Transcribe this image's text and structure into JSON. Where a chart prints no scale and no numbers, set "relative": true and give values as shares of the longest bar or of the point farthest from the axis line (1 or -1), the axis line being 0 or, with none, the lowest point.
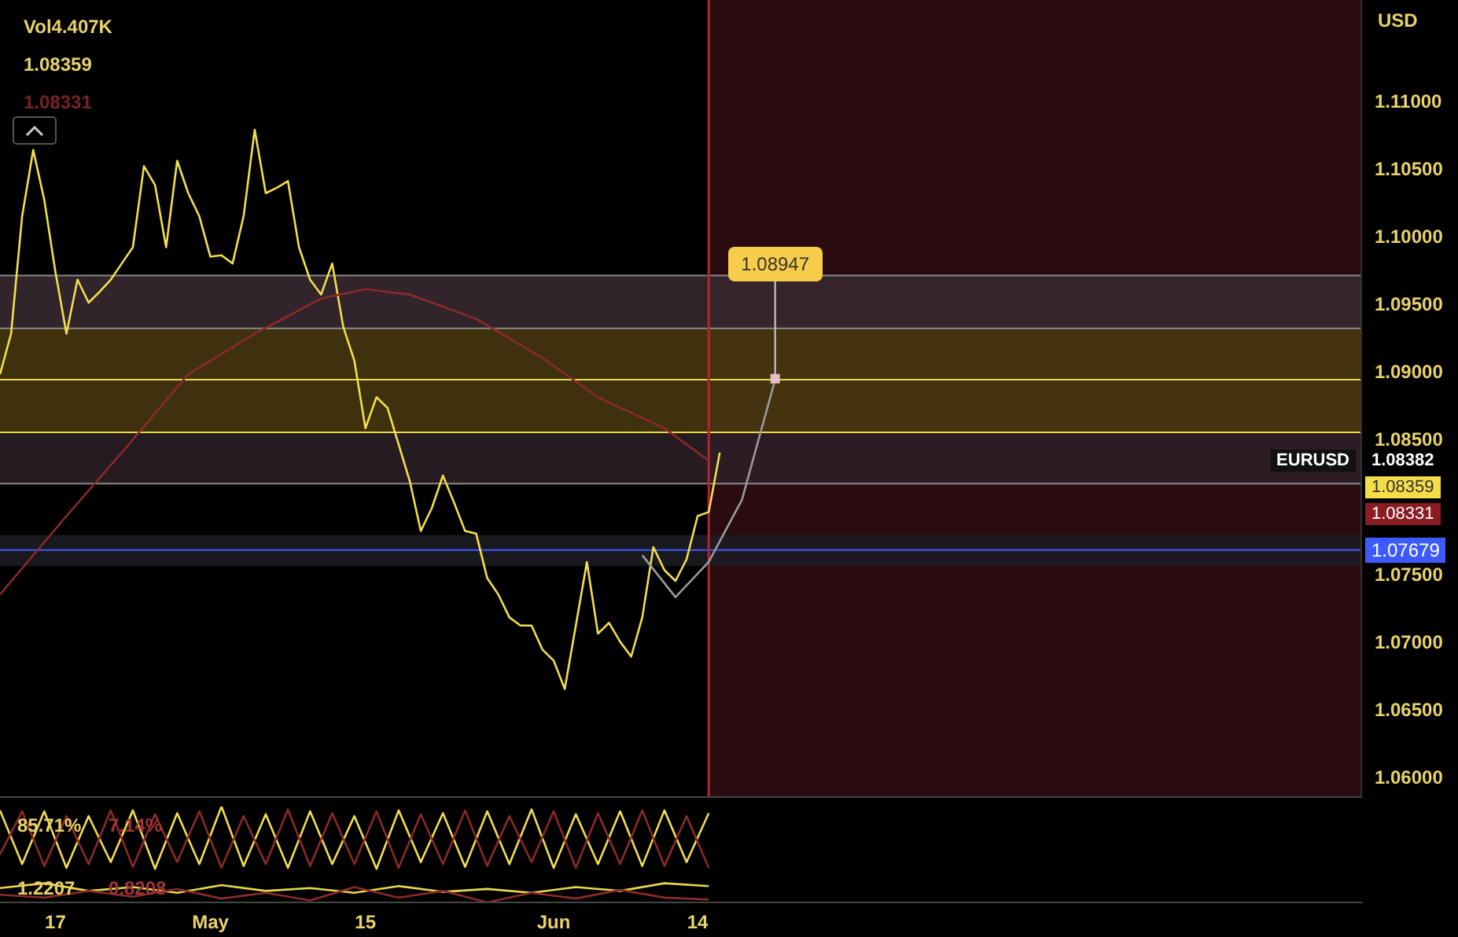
{
  "chart_data": [
    {
      "type": "line",
      "ylabel": "USD",
      "xlim": [
        "--04-12",
        "--08-13"
      ],
      "ylim": [
        1.0585,
        1.1175
      ],
      "yticks": [
        {
          "value": 1.06,
          "label": "1.06000"
        },
        {
          "value": 1.065,
          "label": "1.06500"
        },
        {
          "value": 1.07,
          "label": "1.07000"
        },
        {
          "value": 1.075,
          "label": "1.07500"
        },
        {
          "value": 1.085,
          "label": "1.08500"
        },
        {
          "value": 1.09,
          "label": "1.09000"
        },
        {
          "value": 1.095,
          "label": "1.09500"
        },
        {
          "value": 1.1,
          "label": "1.10000"
        },
        {
          "value": 1.105,
          "label": "1.10500"
        },
        {
          "value": 1.11,
          "label": "1.11000"
        }
      ],
      "tick_labels": "y",
      "marker": "none",
      "series": [
        {
          "color": "#f3df4c",
          "x": [
            "--04-12",
            "--04-13",
            "--04-14",
            "--04-15",
            "--04-16",
            "--04-17",
            "--04-18",
            "--04-19",
            "--04-20",
            "--04-21",
            "--04-22",
            "--04-23",
            "--04-24",
            "--04-25",
            "--04-26",
            "--04-27",
            "--04-28",
            "--04-29",
            "--04-30",
            "--05-01",
            "--05-02",
            "--05-03",
            "--05-04",
            "--05-05",
            "--05-06",
            "--05-07",
            "--05-08",
            "--05-09",
            "--05-10",
            "--05-11",
            "--05-12",
            "--05-13",
            "--05-14",
            "--05-15",
            "--05-16",
            "--05-17",
            "--05-18",
            "--05-19",
            "--05-20",
            "--05-21",
            "--05-22",
            "--05-23",
            "--05-24",
            "--05-25",
            "--05-26",
            "--05-27",
            "--05-28",
            "--05-29",
            "--05-30",
            "--05-31",
            "--06-01",
            "--06-02",
            "--06-03",
            "--06-04",
            "--06-05",
            "--06-06",
            "--06-07",
            "--06-08",
            "--06-09",
            "--06-10",
            "--06-11",
            "--06-12",
            "--06-13",
            "--06-14",
            "--06-15",
            "--06-16"
          ],
          "values": [
            1.0898,
            1.0928,
            1.1015,
            1.1064,
            1.1027,
            1.0974,
            1.0928,
            1.0968,
            1.0951,
            1.0959,
            1.0968,
            1.098,
            1.0992,
            1.1052,
            1.1038,
            1.0992,
            1.1056,
            1.1032,
            1.1015,
            1.0985,
            1.0986,
            1.098,
            1.1015,
            1.1079,
            1.1032,
            1.1036,
            1.1041,
            1.0992,
            1.0968,
            1.0957,
            1.098,
            1.0933,
            1.0908,
            1.0858,
            1.0881,
            1.0873,
            1.0846,
            1.0819,
            1.0782,
            1.0799,
            1.0823,
            1.0803,
            1.0782,
            1.078,
            1.0747,
            1.0735,
            1.0718,
            1.0712,
            1.0712,
            1.0694,
            1.0686,
            1.0665,
            1.0712,
            1.0759,
            1.0706,
            1.0714,
            1.07,
            1.0689,
            1.0718,
            1.077,
            1.0753,
            1.0745,
            1.0761,
            1.0793,
            1.0796,
            1.084
          ]
        },
        {
          "color": "#8b2a2a",
          "x": [
            "--04-12",
            "--04-18",
            "--04-23",
            "--04-29",
            "--05-05",
            "--05-11",
            "--05-15",
            "--05-19",
            "--05-25",
            "--05-31",
            "--06-05",
            "--06-11",
            "--06-15"
          ],
          "values": [
            1.0735,
            1.0793,
            1.084,
            1.0898,
            1.0928,
            1.0954,
            1.0961,
            1.0957,
            1.0939,
            1.091,
            1.0881,
            1.0858,
            1.0834
          ]
        },
        {
          "color": "#9a9a9a",
          "x": [
            "--06-09",
            "--06-12",
            "--06-15",
            "--06-18",
            "--06-21"
          ],
          "values": [
            1.0764,
            1.0733,
            1.0759,
            1.0805,
            1.0894
          ]
        }
      ],
      "ref_lines": [
        {
          "axis": "y",
          "value": 1.0971,
          "color": "#8a8a8a"
        },
        {
          "axis": "y",
          "value": 1.0932,
          "color": "#8a8a8a"
        },
        {
          "axis": "y",
          "value": 1.0894,
          "color": "#e8d84a"
        },
        {
          "axis": "y",
          "value": 1.0855,
          "color": "#e8d84a"
        },
        {
          "axis": "y",
          "value": 1.0817,
          "color": "#8a8a8a"
        },
        {
          "axis": "y",
          "value": 1.07679,
          "color": "#3d5afe",
          "label": "1.07679"
        },
        {
          "axis": "x",
          "value": "--06-15",
          "color": "#b3262e"
        }
      ],
      "bands": [
        {
          "axis": "x",
          "from": "--06-15",
          "to": "--08-13",
          "color": "#2a0c10"
        },
        {
          "axis": "y",
          "from": 1.0932,
          "to": 1.0971,
          "color": "#3a2a32"
        },
        {
          "axis": "y",
          "from": 1.0855,
          "to": 1.0932,
          "color": "#4a3a10"
        },
        {
          "axis": "y",
          "from": 1.0817,
          "to": 1.0855,
          "color": "#2e2028"
        },
        {
          "axis": "y",
          "from": 1.0756,
          "to": 1.0779,
          "color": "#1c1c24"
        }
      ],
      "annotations": [
        "Vol4.407K",
        "1.08359",
        "1.08331",
        {
          "text": "1.08947",
          "x": "--06-21",
          "y": 1.08947
        },
        "EURUSD",
        "1.08382",
        "1.08359",
        "1.08331"
      ]
    },
    {
      "type": "line",
      "relative": true,
      "xlim": [
        "--04-12",
        "--08-13"
      ],
      "xticks": [
        {
          "value": "--04-17",
          "label": "17"
        },
        {
          "value": "--05-01",
          "label": "May"
        },
        {
          "value": "--05-15",
          "label": "15"
        },
        {
          "value": "--06-01",
          "label": "Jun"
        },
        {
          "value": "--06-14",
          "label": "14"
        }
      ],
      "tick_labels": "x",
      "marker": "none",
      "series": [
        {
          "color": "#f3df4c",
          "x": [
            "--04-12",
            "--04-14",
            "--04-16",
            "--04-18",
            "--04-20",
            "--04-22",
            "--04-24",
            "--04-26",
            "--04-28",
            "--04-30",
            "--05-02",
            "--05-04",
            "--05-06",
            "--05-08",
            "--05-10",
            "--05-12",
            "--05-14",
            "--05-16",
            "--05-18",
            "--05-20",
            "--05-22",
            "--05-24",
            "--05-26",
            "--05-28",
            "--05-30",
            "--06-01",
            "--06-03",
            "--06-05",
            "--06-07",
            "--06-09",
            "--06-11",
            "--06-13",
            "--06-15"
          ],
          "values": [
            0.96,
            0.4,
            0.95,
            0.36,
            0.9,
            0.42,
            0.96,
            0.35,
            0.93,
            0.4,
            1,
            0.38,
            0.92,
            0.36,
            0.95,
            0.4,
            0.9,
            0.35,
            0.96,
            0.42,
            0.93,
            0.37,
            0.95,
            0.4,
            0.97,
            0.36,
            0.92,
            0.4,
            0.95,
            0.38,
            0.96,
            0.42,
            0.93
          ]
        },
        {
          "color": "#8b2a2a",
          "x": [
            "--04-12",
            "--04-14",
            "--04-16",
            "--04-18",
            "--04-20",
            "--04-22",
            "--04-24",
            "--04-26",
            "--04-28",
            "--04-30",
            "--05-02",
            "--05-04",
            "--05-06",
            "--05-08",
            "--05-10",
            "--05-12",
            "--05-14",
            "--05-16",
            "--05-18",
            "--05-20",
            "--05-22",
            "--05-24",
            "--05-26",
            "--05-28",
            "--05-30",
            "--06-01",
            "--06-03",
            "--06-05",
            "--06-07",
            "--06-09",
            "--06-11",
            "--06-13",
            "--06-15"
          ],
          "values": [
            0.5,
            0.95,
            0.38,
            0.9,
            0.4,
            0.96,
            0.37,
            0.92,
            0.42,
            0.95,
            0.36,
            0.9,
            0.4,
            0.97,
            0.38,
            0.93,
            0.4,
            0.95,
            0.36,
            0.92,
            0.4,
            0.96,
            0.38,
            0.9,
            0.42,
            0.95,
            0.36,
            0.93,
            0.4,
            0.96,
            0.38,
            0.9,
            0.36
          ]
        },
        {
          "color": "#e8d84a",
          "x": [
            "--04-12",
            "--04-16",
            "--04-20",
            "--04-24",
            "--04-28",
            "--05-02",
            "--05-06",
            "--05-10",
            "--05-14",
            "--05-18",
            "--05-22",
            "--05-26",
            "--05-30",
            "--06-03",
            "--06-07",
            "--06-11",
            "--06-15"
          ],
          "values": [
            0.15,
            0.2,
            0.12,
            0.16,
            0.1,
            0.18,
            0.12,
            0.15,
            0.1,
            0.17,
            0.11,
            0.14,
            0.1,
            0.16,
            0.12,
            0.2,
            0.17
          ]
        },
        {
          "color": "#8b2a2a",
          "x": [
            "--04-12",
            "--04-16",
            "--04-20",
            "--04-24",
            "--04-28",
            "--05-02",
            "--05-06",
            "--05-10",
            "--05-14",
            "--05-18",
            "--05-22",
            "--05-26",
            "--05-30",
            "--06-03",
            "--06-07",
            "--06-11",
            "--06-15"
          ],
          "values": [
            0.08,
            0.05,
            0.12,
            0.06,
            0.14,
            0.04,
            0.1,
            0.02,
            0.16,
            0.05,
            0.12,
            0,
            0.1,
            0.04,
            0.13,
            0.05,
            0.03
          ]
        }
      ],
      "annotations": [
        "85.71%",
        "7.14%",
        "1.2207",
        "0.8208"
      ]
    }
  ]
}
